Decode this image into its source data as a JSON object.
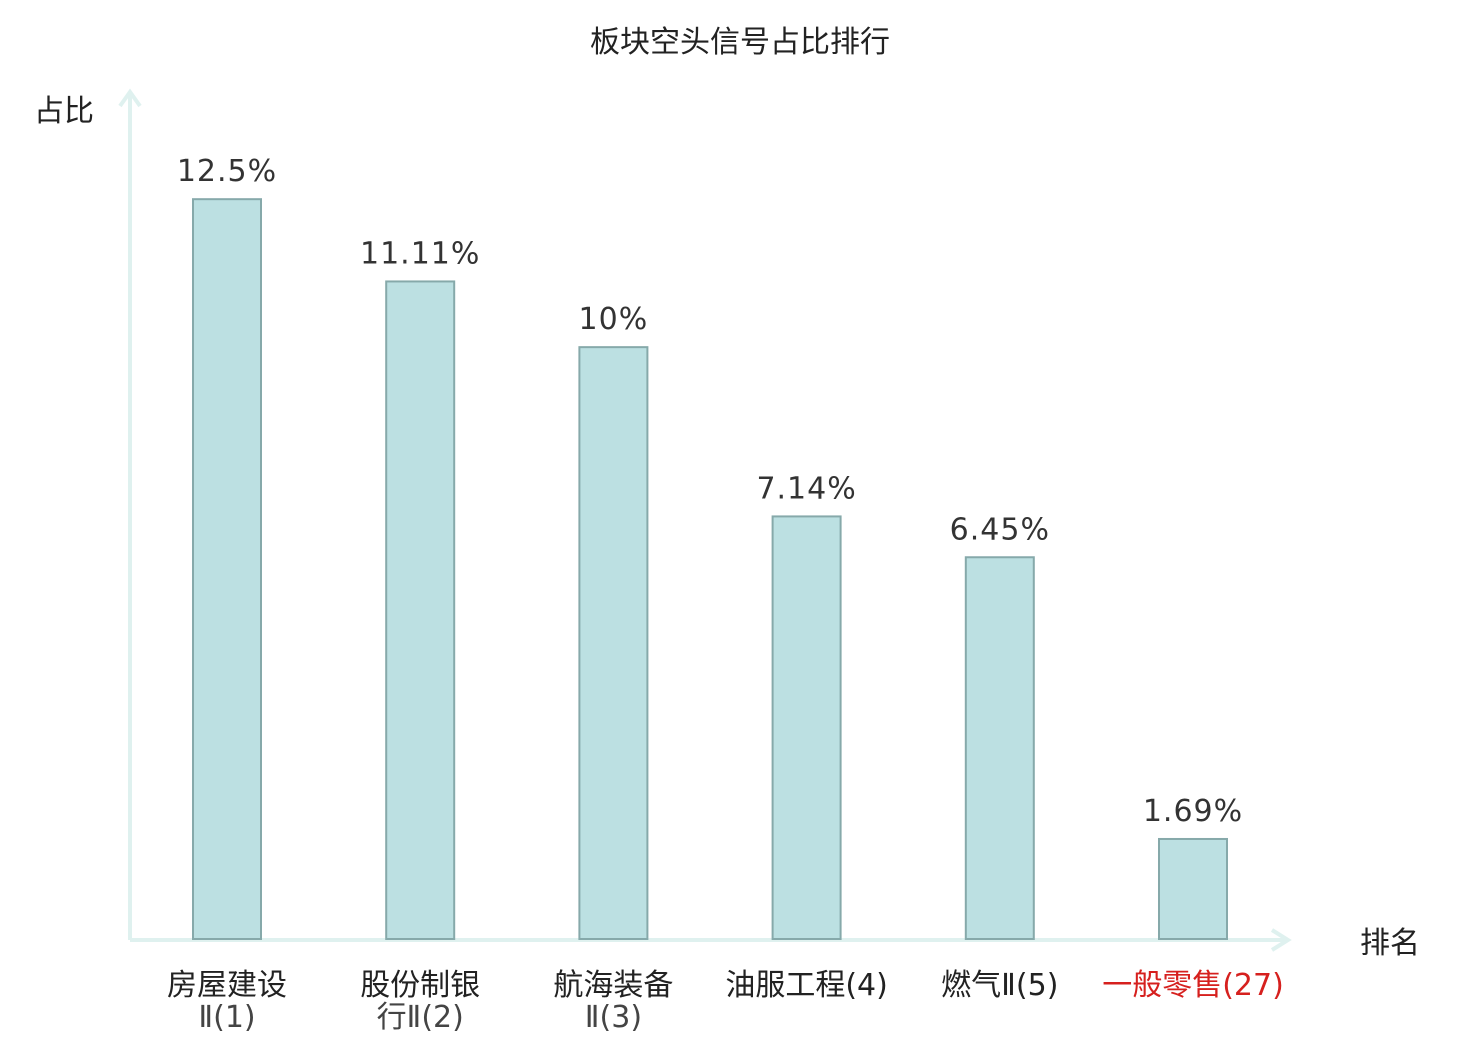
{
  "chart_data": {
    "type": "bar",
    "title": "板块空头信号占比排行",
    "ylabel": "占比",
    "xlabel": "排名",
    "ylim": [
      0,
      13.5
    ],
    "categories": [
      {
        "lines": [
          "房屋建设",
          "Ⅱ(1)"
        ],
        "highlight": false
      },
      {
        "lines": [
          "股份制银",
          "行Ⅱ(2)"
        ],
        "highlight": false
      },
      {
        "lines": [
          "航海装备",
          "Ⅱ(3)"
        ],
        "highlight": false
      },
      {
        "lines": [
          "油服工程(4)"
        ],
        "highlight": false
      },
      {
        "lines": [
          "燃气Ⅱ(5)"
        ],
        "highlight": false
      },
      {
        "lines": [
          "一般零售(27)"
        ],
        "highlight": true
      }
    ],
    "values": [
      12.5,
      11.11,
      10,
      7.14,
      6.45,
      1.69
    ],
    "value_labels": [
      "12.5%",
      "11.11%",
      "10%",
      "7.14%",
      "6.45%",
      "1.69%"
    ],
    "grid": false,
    "legend": "none",
    "colors": {
      "bar_fill": "#bce0e2",
      "bar_stroke": "#86a9aa",
      "axis": "#dff1ef",
      "highlight": "#d6201e"
    }
  }
}
